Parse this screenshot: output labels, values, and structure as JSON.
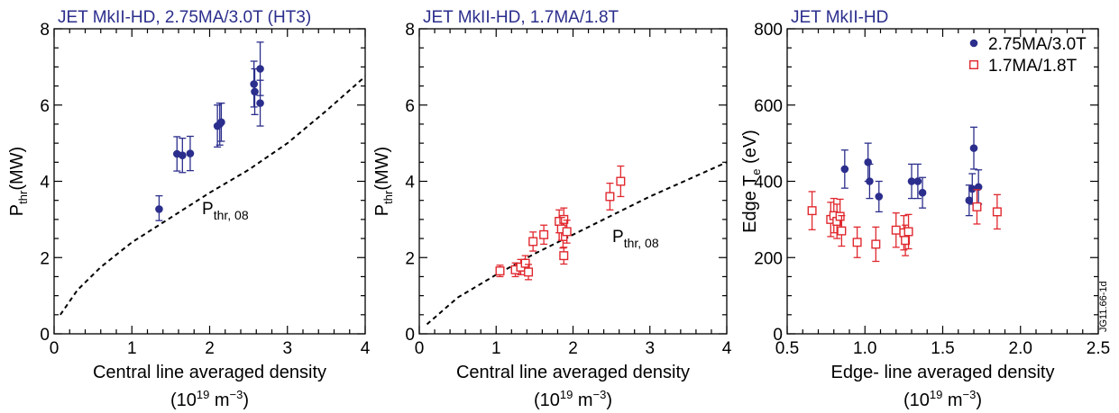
{
  "colors": {
    "blue": "#2b2e8c",
    "red": "#e0282e",
    "title": "#2b2e8c"
  },
  "figure_id": "JG11.66-1d",
  "chart_data": [
    {
      "type": "scatter",
      "title": "JET MkII-HD, 2.75MA/3.0T (HT3)",
      "ylabel_main": "P",
      "ylabel_sub": "thr",
      "ylabel_suffix": "(MW)",
      "xlabel": "Central line averaged density",
      "xlabel_unit": {
        "open": "(10",
        "exp": "19",
        "mid": " m",
        "neg": "−3",
        "close": ")"
      },
      "xlim": [
        0,
        4
      ],
      "ylim": [
        0,
        8
      ],
      "xticks": [
        0,
        1,
        2,
        3,
        4
      ],
      "yticks": [
        0,
        2,
        4,
        6,
        8
      ],
      "curve_label": {
        "main": "P",
        "sub": "thr, 08"
      },
      "curve": [
        [
          0.08,
          0.5
        ],
        [
          0.3,
          1.15
        ],
        [
          0.6,
          1.75
        ],
        [
          1.0,
          2.4
        ],
        [
          1.5,
          3.05
        ],
        [
          2.0,
          3.7
        ],
        [
          2.5,
          4.3
        ],
        [
          3.0,
          5.0
        ],
        [
          3.5,
          5.85
        ],
        [
          4.0,
          6.75
        ]
      ],
      "series": [
        {
          "marker": "filled-circle",
          "color": "blue",
          "points": [
            {
              "x": 1.35,
              "y": 3.27,
              "lo": 0.3,
              "hi": 0.35
            },
            {
              "x": 1.58,
              "y": 4.72,
              "lo": 0.45,
              "hi": 0.45
            },
            {
              "x": 1.65,
              "y": 4.68,
              "lo": 0.45,
              "hi": 0.45
            },
            {
              "x": 1.75,
              "y": 4.73,
              "lo": 0.45,
              "hi": 0.45
            },
            {
              "x": 2.1,
              "y": 5.45,
              "lo": 0.55,
              "hi": 0.55
            },
            {
              "x": 2.13,
              "y": 5.5,
              "lo": 0.55,
              "hi": 0.55
            },
            {
              "x": 2.15,
              "y": 5.55,
              "lo": 0.5,
              "hi": 0.5
            },
            {
              "x": 2.57,
              "y": 6.55,
              "lo": 0.6,
              "hi": 0.6
            },
            {
              "x": 2.58,
              "y": 6.35,
              "lo": 0.6,
              "hi": 0.6
            },
            {
              "x": 2.65,
              "y": 6.95,
              "lo": 0.7,
              "hi": 0.7
            },
            {
              "x": 2.65,
              "y": 6.05,
              "lo": 0.6,
              "hi": 0.6
            }
          ]
        }
      ]
    },
    {
      "type": "scatter",
      "title": "JET MkII-HD, 1.7MA/1.8T",
      "ylabel_main": "P",
      "ylabel_sub": "thr",
      "ylabel_suffix": "(MW)",
      "xlabel": "Central line averaged density",
      "xlabel_unit": {
        "open": "(10",
        "exp": "19",
        "mid": " m",
        "neg": "−3",
        "close": ")"
      },
      "xlim": [
        0,
        4
      ],
      "ylim": [
        0,
        8
      ],
      "xticks": [
        0,
        1,
        2,
        3,
        4
      ],
      "yticks": [
        0,
        2,
        4,
        6,
        8
      ],
      "curve_label": {
        "main": "P",
        "sub": "thr, 08"
      },
      "curve": [
        [
          0.1,
          0.25
        ],
        [
          0.5,
          0.95
        ],
        [
          1.0,
          1.55
        ],
        [
          1.5,
          2.1
        ],
        [
          2.0,
          2.6
        ],
        [
          2.5,
          3.1
        ],
        [
          3.0,
          3.6
        ],
        [
          3.5,
          4.05
        ],
        [
          4.0,
          4.5
        ]
      ],
      "series": [
        {
          "marker": "open-square",
          "color": "red",
          "points": [
            {
              "x": 1.05,
              "y": 1.65,
              "lo": 0.15,
              "hi": 0.15
            },
            {
              "x": 1.25,
              "y": 1.68,
              "lo": 0.18,
              "hi": 0.18
            },
            {
              "x": 1.32,
              "y": 1.75,
              "lo": 0.2,
              "hi": 0.2
            },
            {
              "x": 1.38,
              "y": 1.85,
              "lo": 0.2,
              "hi": 0.2
            },
            {
              "x": 1.42,
              "y": 1.62,
              "lo": 0.2,
              "hi": 0.2
            },
            {
              "x": 1.48,
              "y": 2.42,
              "lo": 0.25,
              "hi": 0.25
            },
            {
              "x": 1.62,
              "y": 2.6,
              "lo": 0.25,
              "hi": 0.25
            },
            {
              "x": 1.82,
              "y": 2.95,
              "lo": 0.3,
              "hi": 0.3
            },
            {
              "x": 1.88,
              "y": 3.0,
              "lo": 0.3,
              "hi": 0.3
            },
            {
              "x": 1.87,
              "y": 2.55,
              "lo": 0.3,
              "hi": 0.3
            },
            {
              "x": 1.85,
              "y": 2.75,
              "lo": 0.3,
              "hi": 0.3
            },
            {
              "x": 1.92,
              "y": 2.68,
              "lo": 0.3,
              "hi": 0.3
            },
            {
              "x": 1.88,
              "y": 2.05,
              "lo": 0.22,
              "hi": 0.22
            },
            {
              "x": 2.48,
              "y": 3.6,
              "lo": 0.35,
              "hi": 0.35
            },
            {
              "x": 2.62,
              "y": 4.0,
              "lo": 0.4,
              "hi": 0.4
            }
          ]
        }
      ]
    },
    {
      "type": "scatter",
      "title": "JET MkII-HD",
      "ylabel_main": "Edge T",
      "ylabel_sub": "e",
      "ylabel_suffix": " (eV)",
      "xlabel": "Edge- line averaged density",
      "xlabel_unit": {
        "open": "(10",
        "exp": "19",
        "mid": " m",
        "neg": "−3",
        "close": ")"
      },
      "xlim": [
        0.5,
        2.5
      ],
      "ylim": [
        0,
        800
      ],
      "xticks": [
        0.5,
        1.0,
        1.5,
        2.0,
        2.5
      ],
      "xtick_labels": [
        "0.5",
        "1.0",
        "1.5",
        "2.0",
        "2.5"
      ],
      "yticks": [
        0,
        200,
        400,
        600,
        800
      ],
      "legend": {
        "placement": "top-right",
        "entries": [
          "2.75MA/3.0T",
          "1.7MA/1.8T"
        ]
      },
      "series": [
        {
          "name": "2.75MA/3.0T",
          "marker": "filled-circle",
          "color": "blue",
          "points": [
            {
              "x": 0.87,
              "y": 432,
              "lo": 50,
              "hi": 50
            },
            {
              "x": 1.02,
              "y": 450,
              "lo": 50,
              "hi": 50
            },
            {
              "x": 1.03,
              "y": 400,
              "lo": 45,
              "hi": 45
            },
            {
              "x": 1.09,
              "y": 360,
              "lo": 40,
              "hi": 40
            },
            {
              "x": 1.3,
              "y": 400,
              "lo": 45,
              "hi": 45
            },
            {
              "x": 1.34,
              "y": 400,
              "lo": 45,
              "hi": 45
            },
            {
              "x": 1.37,
              "y": 370,
              "lo": 40,
              "hi": 40
            },
            {
              "x": 1.67,
              "y": 350,
              "lo": 40,
              "hi": 40
            },
            {
              "x": 1.69,
              "y": 380,
              "lo": 40,
              "hi": 40
            },
            {
              "x": 1.7,
              "y": 487,
              "lo": 55,
              "hi": 55
            },
            {
              "x": 1.73,
              "y": 385,
              "lo": 45,
              "hi": 45
            }
          ]
        },
        {
          "name": "1.7MA/1.8T",
          "marker": "open-square",
          "color": "red",
          "points": [
            {
              "x": 0.66,
              "y": 323,
              "lo": 50,
              "hi": 50
            },
            {
              "x": 0.78,
              "y": 300,
              "lo": 45,
              "hi": 45
            },
            {
              "x": 0.8,
              "y": 310,
              "lo": 45,
              "hi": 45
            },
            {
              "x": 0.82,
              "y": 295,
              "lo": 45,
              "hi": 45
            },
            {
              "x": 0.84,
              "y": 308,
              "lo": 45,
              "hi": 45
            },
            {
              "x": 0.85,
              "y": 270,
              "lo": 40,
              "hi": 40
            },
            {
              "x": 0.95,
              "y": 240,
              "lo": 40,
              "hi": 40
            },
            {
              "x": 1.07,
              "y": 235,
              "lo": 45,
              "hi": 45
            },
            {
              "x": 1.2,
              "y": 272,
              "lo": 45,
              "hi": 45
            },
            {
              "x": 1.25,
              "y": 265,
              "lo": 45,
              "hi": 45
            },
            {
              "x": 1.26,
              "y": 245,
              "lo": 40,
              "hi": 40
            },
            {
              "x": 1.28,
              "y": 268,
              "lo": 45,
              "hi": 45
            },
            {
              "x": 1.72,
              "y": 333,
              "lo": 45,
              "hi": 45
            },
            {
              "x": 1.85,
              "y": 320,
              "lo": 45,
              "hi": 45
            }
          ]
        }
      ]
    }
  ]
}
